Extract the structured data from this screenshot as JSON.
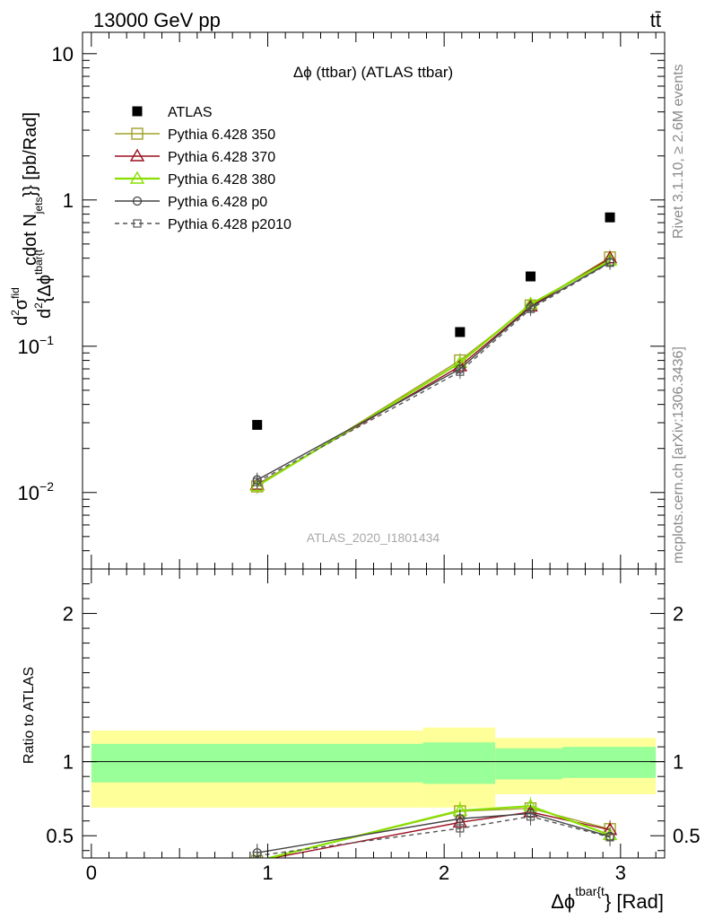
{
  "header": {
    "left": "13000 GeV pp",
    "right": "tt̄"
  },
  "side_labels": {
    "rivet": "Rivet 3.1.10, ≥ 2.6M events",
    "mcplots": "mcplots.cern.ch [arXiv:1306.3436]"
  },
  "colors": {
    "atlas": "#000000",
    "p350": "#a0a02a",
    "p370": "#9b1020",
    "p380": "#88e000",
    "p0": "#444444",
    "p2010": "#555555",
    "band_inner": "#99ff99",
    "band_outer": "#ffff99"
  },
  "chart_data": [
    {
      "type": "scatter",
      "panel": "main",
      "title": "Δϕ (ttbar) (ATLAS ttbar)",
      "watermark": "ATLAS_2020_I1801434",
      "ylabel": "d²σ^fid / d²{Δϕ^tbar{t} cdot N_jets}} [pb/Rad]",
      "ylabel_parts": {
        "d": "d",
        "sup2a": "2",
        "sigma": "σ",
        "fid": "fid",
        "d2": "d",
        "sup2b": "2",
        "brace": "{Δϕ",
        "tbar": "tbar{t",
        "cdot": "cdot N",
        "jets": "jets",
        "close": "}} [pb/Rad]"
      },
      "yscale": "log",
      "ylim": [
        0.003,
        14
      ],
      "xlim": [
        -0.05,
        3.25
      ],
      "y_ticks": [
        {
          "value": 10,
          "label": "10"
        },
        {
          "value": 1,
          "label": "1"
        },
        {
          "value": 0.1,
          "label": "10",
          "exp": "−1"
        },
        {
          "value": 0.01,
          "label": "10",
          "exp": "−2"
        }
      ],
      "legend": [
        {
          "key": "atlas",
          "label": "ATLAS"
        },
        {
          "key": "p350",
          "label": "Pythia 6.428 350"
        },
        {
          "key": "p370",
          "label": "Pythia 6.428 370"
        },
        {
          "key": "p380",
          "label": "Pythia 6.428 380"
        },
        {
          "key": "p0",
          "label": "Pythia 6.428 p0"
        },
        {
          "key": "p2010",
          "label": "Pythia 6.428 p2010"
        }
      ],
      "legend_position": "top-left",
      "series": [
        {
          "key": "atlas",
          "name": "ATLAS",
          "marker": "square-filled",
          "x": [
            0.94,
            2.09,
            2.49,
            2.94
          ],
          "y": [
            0.029,
            0.125,
            0.3,
            0.76
          ]
        },
        {
          "key": "p350",
          "name": "Pythia 6.428 350",
          "marker": "square-open",
          "line": "solid",
          "x": [
            0.94,
            2.09,
            2.49,
            2.94
          ],
          "y": [
            0.011,
            0.08,
            0.19,
            0.405
          ]
        },
        {
          "key": "p370",
          "name": "Pythia 6.428 370",
          "marker": "triangle-open",
          "line": "solid",
          "x": [
            0.94,
            2.09,
            2.49,
            2.94
          ],
          "y": [
            0.0113,
            0.073,
            0.187,
            0.4
          ]
        },
        {
          "key": "p380",
          "name": "Pythia 6.428 380",
          "marker": "triangle-open",
          "line": "solid",
          "x": [
            0.94,
            2.09,
            2.49,
            2.94
          ],
          "y": [
            0.0111,
            0.077,
            0.194,
            0.385
          ]
        },
        {
          "key": "p0",
          "name": "Pythia 6.428 p0",
          "marker": "circle-open",
          "line": "solid",
          "x": [
            0.94,
            2.09,
            2.49,
            2.94
          ],
          "y": [
            0.0122,
            0.07,
            0.185,
            0.375
          ]
        },
        {
          "key": "p2010",
          "name": "Pythia 6.428 p2010",
          "marker": "square-open-small",
          "line": "dashed",
          "x": [
            0.94,
            2.09,
            2.49,
            2.94
          ],
          "y": [
            0.0118,
            0.067,
            0.18,
            0.372
          ]
        }
      ]
    },
    {
      "type": "line",
      "panel": "ratio",
      "ylabel": "Ratio to ATLAS",
      "xlabel": "Δϕ^tbar{t} [Rad]",
      "xlabel_parts": {
        "base": "Δϕ",
        "sup": "tbar{t",
        "rest": "} [Rad]"
      },
      "xlim": [
        -0.05,
        3.25
      ],
      "ylim": [
        0.35,
        2.3
      ],
      "x_ticks": [
        0,
        1,
        2,
        3
      ],
      "y_ticks": [
        0.5,
        1,
        2
      ],
      "y_tick_labels": [
        "0.5",
        "1",
        "2"
      ],
      "x_tick_labels": [
        "0",
        "1",
        "2",
        "3"
      ],
      "bands": [
        {
          "x0": 0.0,
          "x1": 1.88,
          "inner": [
            0.86,
            1.12
          ],
          "outer": [
            0.69,
            1.21
          ]
        },
        {
          "x0": 1.88,
          "x1": 2.29,
          "inner": [
            0.85,
            1.13
          ],
          "outer": [
            0.69,
            1.23
          ]
        },
        {
          "x0": 2.29,
          "x1": 2.67,
          "inner": [
            0.88,
            1.09
          ],
          "outer": [
            0.78,
            1.16
          ]
        },
        {
          "x0": 2.67,
          "x1": 3.2,
          "inner": [
            0.89,
            1.1
          ],
          "outer": [
            0.78,
            1.16
          ]
        }
      ],
      "series": [
        {
          "key": "p350",
          "name": "Pythia 6.428 350",
          "x": [
            0.94,
            2.09,
            2.49,
            2.94
          ],
          "y": [
            0.33,
            0.665,
            0.685,
            0.545
          ]
        },
        {
          "key": "p370",
          "name": "Pythia 6.428 370",
          "x": [
            0.94,
            2.09,
            2.49,
            2.94
          ],
          "y": [
            0.33,
            0.59,
            0.66,
            0.54
          ]
        },
        {
          "key": "p380",
          "name": "Pythia 6.428 380",
          "x": [
            0.94,
            2.09,
            2.49,
            2.94
          ],
          "y": [
            0.33,
            0.67,
            0.7,
            0.505
          ]
        },
        {
          "key": "p0",
          "name": "Pythia 6.428 p0",
          "x": [
            0.94,
            2.09,
            2.49,
            2.94
          ],
          "y": [
            0.385,
            0.615,
            0.65,
            0.495
          ]
        },
        {
          "key": "p2010",
          "name": "Pythia 6.428 p2010",
          "x": [
            0.94,
            2.09,
            2.49,
            2.94
          ],
          "y": [
            0.365,
            0.55,
            0.63,
            0.49
          ]
        }
      ]
    }
  ]
}
